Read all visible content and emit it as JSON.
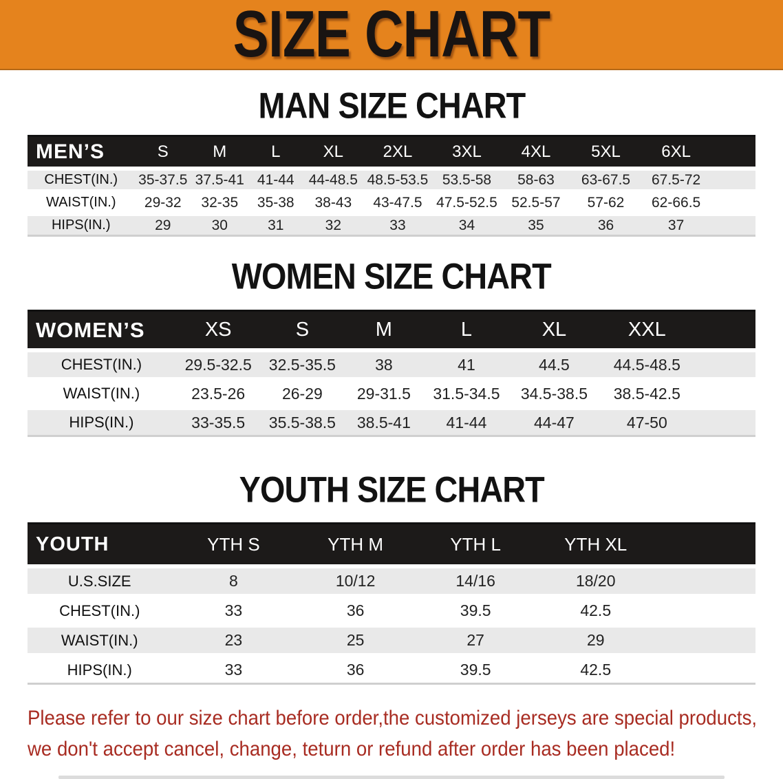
{
  "banner": {
    "title": "SIZE CHART",
    "background_color": "#e5831d",
    "text_color": "#191412"
  },
  "sections": {
    "men": {
      "heading": "MAN SIZE CHART",
      "table": {
        "corner": "MEN’S",
        "columns": [
          "S",
          "M",
          "L",
          "XL",
          "2XL",
          "3XL",
          "4XL",
          "5XL",
          "6XL"
        ],
        "rows": [
          {
            "label": "CHEST(IN.)",
            "values": [
              "35-37.5",
              "37.5-41",
              "41-44",
              "44-48.5",
              "48.5-53.5",
              "53.5-58",
              "58-63",
              "63-67.5",
              "67.5-72"
            ]
          },
          {
            "label": "WAIST(IN.)",
            "values": [
              "29-32",
              "32-35",
              "35-38",
              "38-43",
              "43-47.5",
              "47.5-52.5",
              "52.5-57",
              "57-62",
              "62-66.5"
            ]
          },
          {
            "label": "HIPS(IN.)",
            "values": [
              "29",
              "30",
              "31",
              "32",
              "33",
              "34",
              "35",
              "36",
              "37"
            ]
          }
        ]
      }
    },
    "women": {
      "heading": "WOMEN SIZE CHART",
      "table": {
        "corner": "WOMEN’S",
        "columns": [
          "XS",
          "S",
          "M",
          "L",
          "XL",
          "XXL"
        ],
        "rows": [
          {
            "label": "CHEST(IN.)",
            "values": [
              "29.5-32.5",
              "32.5-35.5",
              "38",
              "41",
              "44.5",
              "44.5-48.5"
            ]
          },
          {
            "label": "WAIST(IN.)",
            "values": [
              "23.5-26",
              "26-29",
              "29-31.5",
              "31.5-34.5",
              "34.5-38.5",
              "38.5-42.5"
            ]
          },
          {
            "label": "HIPS(IN.)",
            "values": [
              "33-35.5",
              "35.5-38.5",
              "38.5-41",
              "41-44",
              "44-47",
              "47-50"
            ]
          }
        ]
      }
    },
    "youth": {
      "heading": "YOUTH SIZE CHART",
      "table": {
        "corner": "YOUTH",
        "columns": [
          "YTH S",
          "YTH M",
          "YTH L",
          "YTH XL"
        ],
        "rows": [
          {
            "label": "U.S.SIZE",
            "values": [
              "8",
              "10/12",
              "14/16",
              "18/20"
            ]
          },
          {
            "label": "CHEST(IN.)",
            "values": [
              "33",
              "36",
              "39.5",
              "42.5"
            ]
          },
          {
            "label": "WAIST(IN.)",
            "values": [
              "23",
              "25",
              "27",
              "29"
            ]
          },
          {
            "label": "HIPS(IN.)",
            "values": [
              "33",
              "36",
              "39.5",
              "42.5"
            ]
          }
        ]
      }
    }
  },
  "disclaimer": {
    "line1": "Please refer to our size chart before order,the customized jerseys are special products,",
    "line2": "we don't accept cancel, change, teturn or refund after order has been placed!",
    "text_color": "#a82c22"
  },
  "style_colors": {
    "table_header_background": "#1c1a19",
    "table_header_text": "#ffffff",
    "row_stripe_gray": "#e9e9e9"
  }
}
